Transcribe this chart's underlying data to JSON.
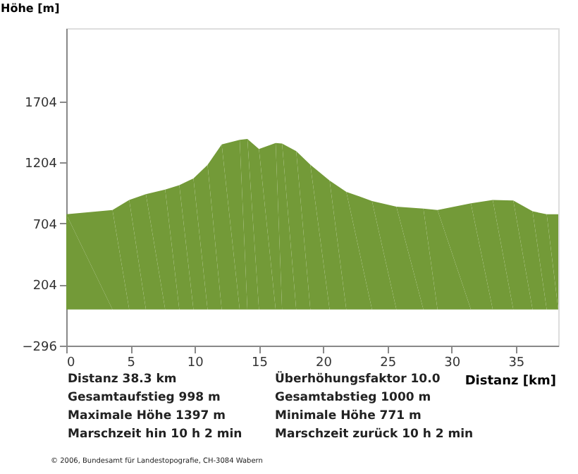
{
  "chart_data": {
    "type": "area",
    "ylabel": "Höhe [m]",
    "xlabel": "Distanz [km]",
    "x": [
      0,
      3.6,
      4.9,
      6.2,
      7.7,
      8.8,
      9.9,
      11.0,
      12.1,
      13.5,
      14.1,
      15.0,
      16.3,
      16.8,
      17.9,
      19.0,
      20.5,
      21.8,
      23.8,
      25.7,
      27.8,
      28.9,
      31.5,
      33.2,
      34.8,
      36.3,
      37.4,
      38.3
    ],
    "series": [
      {
        "color": "#739a38",
        "values": [
          780,
          815,
          897,
          945,
          982,
          1019,
          1074,
          1185,
          1352,
          1389,
          1397,
          1315,
          1363,
          1360,
          1297,
          1186,
          1056,
          964,
          889,
          842,
          826,
          815,
          870,
          897,
          893,
          804,
          780,
          780
        ]
      }
    ],
    "xlim": [
      0,
      38.3
    ],
    "xticks": [
      0,
      5,
      10,
      15,
      20,
      25,
      30,
      35
    ],
    "ylim": [
      -296,
      2304
    ],
    "yticks": [
      -296,
      204,
      704,
      1204,
      1704
    ],
    "grid": false,
    "annotations": [
      "Distanz 38.3 km",
      "Überhöhungsfaktor 10.0",
      "Gesamtaufstieg  998 m",
      "Gesamtabstieg  1000 m",
      "Maximale Höhe  1397 m",
      "Minimale Höhe  771 m",
      "Marschzeit hin  10 h 2 min",
      "Marschzeit zurück  10 h 2 min",
      "© 2006, Bundesamt für Landestopografie, CH-3084 Wabern"
    ]
  }
}
